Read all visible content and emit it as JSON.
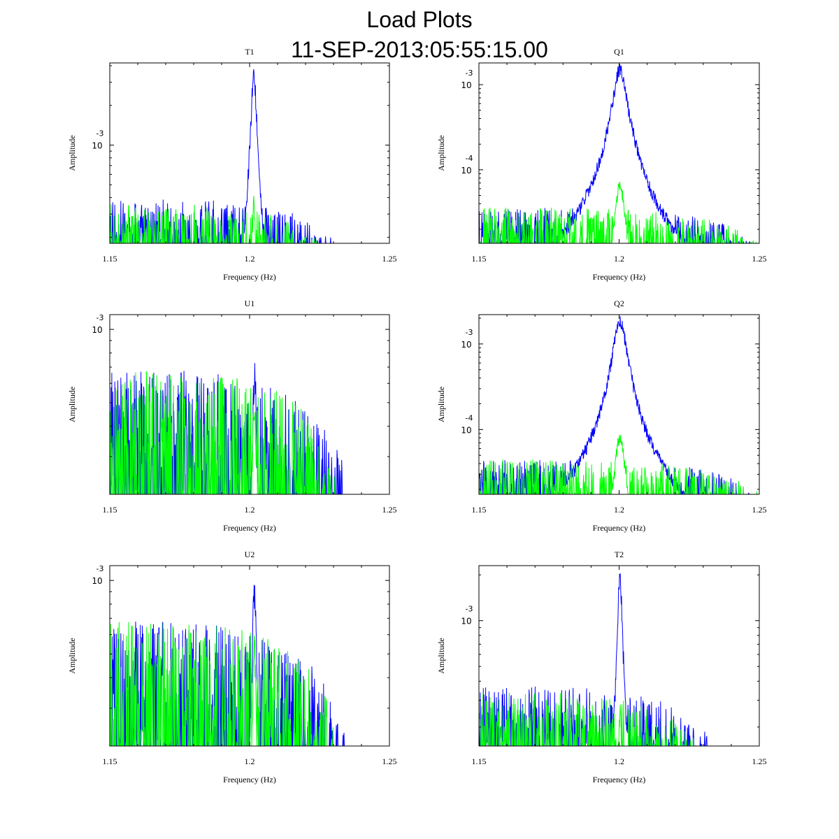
{
  "figure": {
    "title": "Load Plots",
    "subtitle": "11-SEP-2013:05:55:15.00"
  },
  "chart_data": [
    {
      "type": "line",
      "title": "T1",
      "xlabel": "Frequency (Hz)",
      "ylabel": "Amplitude",
      "xlim": [
        1.15,
        1.25
      ],
      "xticks": [
        "1.15",
        "1.2",
        "1.25"
      ],
      "ylog": true,
      "ylim": [
        0.00018,
        0.0042
      ],
      "yticks": [
        {
          "value": 0.001,
          "base": "10",
          "exp": "-3"
        }
      ],
      "peak_x": 1.2015,
      "series": [
        {
          "color": "#0000ff",
          "noise": 0.00039,
          "peak": 0.0042,
          "width": 0.0009,
          "cutoff": 1.234
        },
        {
          "color": "#00ff00",
          "noise": 0.00036,
          "peak": 0.00043,
          "width": 0.0006,
          "cutoff": 1.229
        }
      ]
    },
    {
      "type": "line",
      "title": "Q1",
      "xlabel": "Frequency (Hz)",
      "ylabel": "Amplitude",
      "xlim": [
        1.15,
        1.25
      ],
      "xticks": [
        "1.15",
        "1.2",
        "1.25"
      ],
      "ylog": true,
      "ylim": [
        1.37e-05,
        0.0018
      ],
      "yticks": [
        {
          "value": 0.001,
          "base": "10",
          "exp": "-3"
        },
        {
          "value": 0.0001,
          "base": "10",
          "exp": "-4"
        }
      ],
      "peak_x": 1.2003,
      "series": [
        {
          "color": "#0000ff",
          "noise": 3.6e-05,
          "peak": 0.0018,
          "width": 0.0022,
          "cutoff": 1.25
        },
        {
          "color": "#00ff00",
          "noise": 3.6e-05,
          "peak": 8e-05,
          "width": 0.0015,
          "cutoff": 1.25
        }
      ]
    },
    {
      "type": "line",
      "title": "U1",
      "xlabel": "Frequency (Hz)",
      "ylabel": "Amplitude",
      "xlim": [
        1.15,
        1.25
      ],
      "xticks": [
        "1.15",
        "1.2",
        "1.25"
      ],
      "ylog": true,
      "ylim": [
        0.00021,
        0.00115
      ],
      "yticks": [
        {
          "value": 0.001,
          "base": "10",
          "exp": "-3"
        }
      ],
      "peak_x": 1.2017,
      "series": [
        {
          "color": "#0000ff",
          "noise": 0.00068,
          "peak": 0.00075,
          "width": 0.0008,
          "cutoff": 1.234
        },
        {
          "color": "#00ff00",
          "noise": 0.00068,
          "peak": 0.0006,
          "width": 0.0007,
          "cutoff": 1.231
        }
      ]
    },
    {
      "type": "line",
      "title": "Q2",
      "xlabel": "Frequency (Hz)",
      "ylabel": "Amplitude",
      "xlim": [
        1.15,
        1.25
      ],
      "xticks": [
        "1.15",
        "1.2",
        "1.25"
      ],
      "ylog": true,
      "ylim": [
        1.75e-05,
        0.0022
      ],
      "yticks": [
        {
          "value": 0.001,
          "base": "10",
          "exp": "-3"
        },
        {
          "value": 0.0001,
          "base": "10",
          "exp": "-4"
        }
      ],
      "peak_x": 1.2003,
      "series": [
        {
          "color": "#0000ff",
          "noise": 4.5e-05,
          "peak": 0.0022,
          "width": 0.0022,
          "cutoff": 1.25
        },
        {
          "color": "#00ff00",
          "noise": 4.5e-05,
          "peak": 0.0001,
          "width": 0.0015,
          "cutoff": 1.25
        }
      ]
    },
    {
      "type": "line",
      "title": "U2",
      "xlabel": "Frequency (Hz)",
      "ylabel": "Amplitude",
      "xlim": [
        1.15,
        1.25
      ],
      "xticks": [
        "1.15",
        "1.2",
        "1.25"
      ],
      "ylog": true,
      "ylim": [
        0.00021,
        0.00115
      ],
      "yticks": [
        {
          "value": 0.001,
          "base": "10",
          "exp": "-3"
        }
      ],
      "peak_x": 1.2017,
      "series": [
        {
          "color": "#0000ff",
          "noise": 0.00068,
          "peak": 0.00108,
          "width": 0.0008,
          "cutoff": 1.234
        },
        {
          "color": "#00ff00",
          "noise": 0.00068,
          "peak": 0.0006,
          "width": 0.0007,
          "cutoff": 1.231
        }
      ]
    },
    {
      "type": "line",
      "title": "T2",
      "xlabel": "Frequency (Hz)",
      "ylabel": "Amplitude",
      "xlim": [
        1.15,
        1.25
      ],
      "xticks": [
        "1.15",
        "1.2",
        "1.25"
      ],
      "ylog": true,
      "ylim": [
        0.00015,
        0.0023
      ],
      "yticks": [
        {
          "value": 0.001,
          "base": "10",
          "exp": "-3"
        }
      ],
      "peak_x": 1.2003,
      "series": [
        {
          "color": "#0000ff",
          "noise": 0.00037,
          "peak": 0.0023,
          "width": 0.0008,
          "cutoff": 1.235
        },
        {
          "color": "#00ff00",
          "noise": 0.00034,
          "peak": 0.0003,
          "width": 0.0006,
          "cutoff": 1.23
        }
      ]
    }
  ]
}
